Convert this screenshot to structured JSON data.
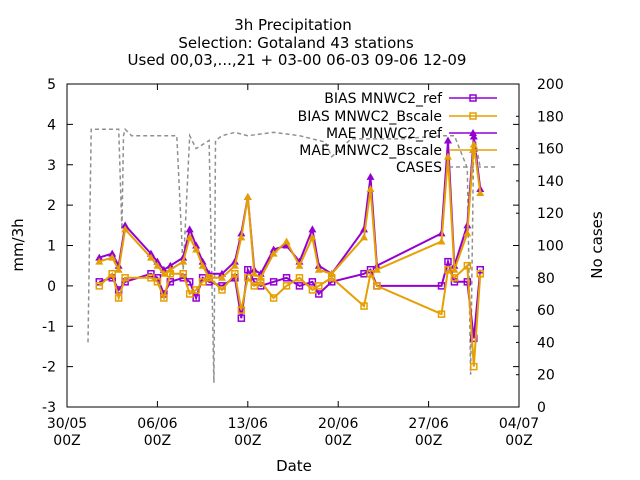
{
  "chart_data": {
    "type": "line",
    "title": [
      "3h Precipitation",
      "Selection: Gotaland     43 stations",
      "Used 00,03,...,21 + 03-00 06-03 09-06 12-09"
    ],
    "xlabel": "Date",
    "ylabel": "mm/3h",
    "y2label": "No cases",
    "ylim": [
      -3,
      5
    ],
    "y2lim": [
      0,
      200
    ],
    "xlim": [
      "2022-05-30T00:00Z",
      "2022-07-04T00:00Z"
    ],
    "x_ticks": [
      "30/05",
      "06/06",
      "13/06",
      "20/06",
      "27/06",
      "04/07"
    ],
    "x_ticks_sub": "00Z",
    "y_ticks": [
      "-3",
      "-2",
      "-1",
      "0",
      "1",
      "2",
      "3",
      "4",
      "5"
    ],
    "y2_ticks": [
      "0",
      "20",
      "40",
      "60",
      "80",
      "100",
      "120",
      "140",
      "160",
      "180",
      "200"
    ],
    "legend_position": "top-right",
    "series": [
      {
        "name": "BIAS MNWC2_ref",
        "color": "#9400d3",
        "marker": "square",
        "axis": "left",
        "x": [
          "06-01 12",
          "06-02 12",
          "06-03 00",
          "06-03 12",
          "06-05 12",
          "06-06 00",
          "06-06 12",
          "06-07 00",
          "06-08 00",
          "06-08 12",
          "06-09 00",
          "06-09 12",
          "06-10 00",
          "06-11 00",
          "06-12 00",
          "06-12 12",
          "06-13 00",
          "06-13 12",
          "06-14 00",
          "06-15 00",
          "06-16 00",
          "06-17 00",
          "06-18 00",
          "06-18 12",
          "06-19 12",
          "06-22 00",
          "06-22 12",
          "06-23 00",
          "06-28 00",
          "06-28 12",
          "06-29 00",
          "06-30 00",
          "06-30 12",
          "07-01 00"
        ],
        "y": [
          0.1,
          0.2,
          -0.1,
          0.1,
          0.3,
          0.2,
          -0.2,
          0.1,
          0.2,
          0.1,
          -0.3,
          0.2,
          0.1,
          0.0,
          0.2,
          -0.8,
          0.4,
          0.1,
          0.0,
          0.1,
          0.2,
          0.0,
          0.1,
          -0.2,
          0.1,
          0.3,
          0.4,
          0.0,
          0.0,
          0.6,
          0.1,
          0.1,
          -1.3,
          0.4
        ]
      },
      {
        "name": "BIAS MNWC2_Bscale",
        "color": "#e69f00",
        "marker": "square",
        "axis": "left",
        "x": [
          "06-01 12",
          "06-02 12",
          "06-03 00",
          "06-03 12",
          "06-05 12",
          "06-06 00",
          "06-06 12",
          "06-07 00",
          "06-08 00",
          "06-08 12",
          "06-09 00",
          "06-09 12",
          "06-10 00",
          "06-11 00",
          "06-12 00",
          "06-12 12",
          "06-13 00",
          "06-13 12",
          "06-14 00",
          "06-15 00",
          "06-16 00",
          "06-17 00",
          "06-18 00",
          "06-18 12",
          "06-19 12",
          "06-22 00",
          "06-22 12",
          "06-23 00",
          "06-28 00",
          "06-28 12",
          "06-29 00",
          "06-30 00",
          "06-30 12",
          "07-01 00"
        ],
        "y": [
          0.0,
          0.3,
          -0.3,
          0.2,
          0.2,
          0.1,
          -0.3,
          0.3,
          0.3,
          -0.2,
          -0.1,
          0.1,
          0.2,
          -0.1,
          0.3,
          -0.6,
          0.2,
          0.0,
          0.1,
          -0.3,
          0.0,
          0.2,
          -0.1,
          0.0,
          0.2,
          -0.5,
          0.3,
          0.0,
          -0.7,
          0.4,
          0.2,
          0.5,
          -2.0,
          0.3
        ]
      },
      {
        "name": "MAE MNWC2_ref",
        "color": "#9400d3",
        "marker": "triangle",
        "axis": "left",
        "x": [
          "06-01 12",
          "06-02 12",
          "06-03 00",
          "06-03 12",
          "06-05 12",
          "06-06 00",
          "06-06 12",
          "06-07 00",
          "06-08 00",
          "06-08 12",
          "06-09 00",
          "06-09 12",
          "06-10 00",
          "06-11 00",
          "06-12 00",
          "06-12 12",
          "06-13 00",
          "06-13 12",
          "06-14 00",
          "06-15 00",
          "06-16 00",
          "06-17 00",
          "06-18 00",
          "06-18 12",
          "06-19 12",
          "06-22 00",
          "06-22 12",
          "06-23 00",
          "06-28 00",
          "06-28 12",
          "06-29 00",
          "06-30 00",
          "06-30 12",
          "07-01 00"
        ],
        "y": [
          0.7,
          0.8,
          0.5,
          1.5,
          0.8,
          0.6,
          0.4,
          0.5,
          0.7,
          1.4,
          1.0,
          0.6,
          0.3,
          0.3,
          0.6,
          1.3,
          2.2,
          0.4,
          0.3,
          0.9,
          1.0,
          0.6,
          1.4,
          0.5,
          0.3,
          1.4,
          2.7,
          0.5,
          1.3,
          3.6,
          0.5,
          1.5,
          3.7,
          2.4
        ]
      },
      {
        "name": "MAE MNWC2_Bscale",
        "color": "#e69f00",
        "marker": "triangle",
        "axis": "left",
        "x": [
          "06-01 12",
          "06-02 12",
          "06-03 00",
          "06-03 12",
          "06-05 12",
          "06-06 00",
          "06-06 12",
          "06-07 00",
          "06-08 00",
          "06-08 12",
          "06-09 00",
          "06-09 12",
          "06-10 00",
          "06-11 00",
          "06-12 00",
          "06-12 12",
          "06-13 00",
          "06-13 12",
          "06-14 00",
          "06-15 00",
          "06-16 00",
          "06-17 00",
          "06-18 00",
          "06-18 12",
          "06-19 12",
          "06-22 00",
          "06-22 12",
          "06-23 00",
          "06-28 00",
          "06-28 12",
          "06-29 00",
          "06-30 00",
          "06-30 12",
          "07-01 00"
        ],
        "y": [
          0.6,
          0.7,
          0.4,
          1.4,
          0.7,
          0.5,
          0.3,
          0.4,
          0.6,
          1.2,
          0.9,
          0.5,
          0.2,
          0.2,
          0.5,
          1.2,
          2.2,
          0.3,
          0.2,
          0.8,
          1.1,
          0.5,
          1.2,
          0.4,
          0.3,
          1.2,
          2.4,
          0.4,
          1.1,
          3.2,
          0.4,
          1.3,
          3.5,
          2.3
        ]
      },
      {
        "name": "CASES",
        "color": "#909090",
        "dash": true,
        "axis": "right",
        "x": [
          "05-31 15",
          "05-31 21",
          "06-01 00",
          "06-03 00",
          "06-03 06",
          "06-03 09",
          "06-03 12",
          "06-04 00",
          "06-07 12",
          "06-08 00",
          "06-08 12",
          "06-09 00",
          "06-10 00",
          "06-10 09",
          "06-10 12",
          "06-11 00",
          "06-12 00",
          "06-13 00",
          "06-15 00",
          "06-17 00",
          "06-19 00",
          "06-19 12",
          "06-21 00",
          "06-25 00",
          "06-28 00",
          "06-28 12",
          "06-29 00",
          "06-30 00",
          "06-30 06",
          "06-30 12",
          "07-01 00"
        ],
        "y": [
          40,
          172,
          172,
          172,
          110,
          168,
          172,
          168,
          168,
          85,
          168,
          160,
          165,
          15,
          165,
          168,
          170,
          168,
          170,
          168,
          164,
          155,
          166,
          166,
          168,
          168,
          168,
          148,
          20,
          170,
          148
        ]
      }
    ]
  }
}
